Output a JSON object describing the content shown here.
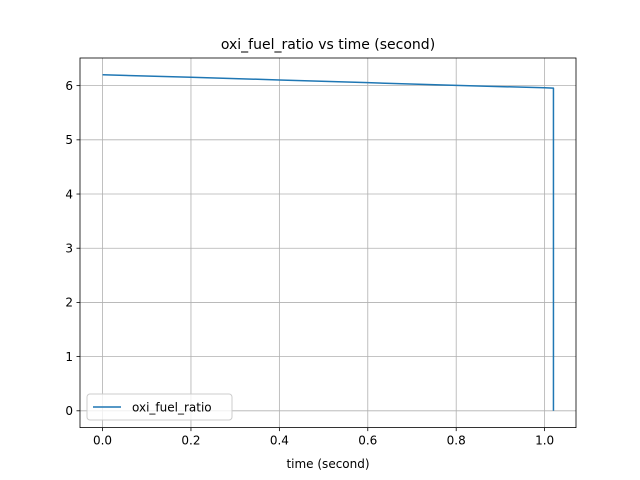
{
  "chart_data": {
    "type": "line",
    "title": "oxi_fuel_ratio vs time (second)",
    "xlabel": "time (second)",
    "ylabel": "",
    "xlim": [
      -0.051,
      1.071
    ],
    "ylim": [
      -0.31,
      6.51
    ],
    "xticks": [
      "0.0",
      "0.2",
      "0.4",
      "0.6",
      "0.8",
      "1.0"
    ],
    "yticks": [
      "0",
      "1",
      "2",
      "3",
      "4",
      "5",
      "6"
    ],
    "grid": true,
    "legend_position": "lower-left",
    "series": [
      {
        "name": "oxi_fuel_ratio",
        "color": "#1f77b4",
        "x": [
          0.0,
          0.2,
          0.4,
          0.6,
          0.8,
          1.0,
          1.02,
          1.02
        ],
        "y": [
          6.2,
          6.155,
          6.105,
          6.055,
          6.005,
          5.96,
          5.955,
          0.0
        ]
      }
    ]
  }
}
